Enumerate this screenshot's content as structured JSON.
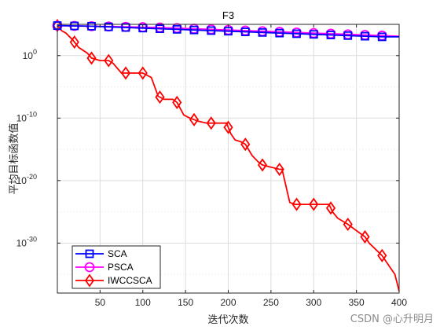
{
  "chart_data": {
    "type": "line",
    "title": "F3",
    "xlabel": "迭代次数",
    "ylabel": "平均目标函数值",
    "xlim": [
      0,
      400
    ],
    "ylim_log10": [
      -38,
      5
    ],
    "yscale": "log",
    "grid": true,
    "legend_position": "bottom-left",
    "x_ticks": [
      50,
      100,
      150,
      200,
      250,
      300,
      350,
      400
    ],
    "y_ticks": [
      {
        "exp": 0,
        "base": "10",
        "sup": "0"
      },
      {
        "exp": -10,
        "base": "10",
        "sup": "-10"
      },
      {
        "exp": -20,
        "base": "10",
        "sup": "-20"
      },
      {
        "exp": -30,
        "base": "10",
        "sup": "-30"
      }
    ],
    "series": [
      {
        "name": "SCA",
        "color": "#0000ff",
        "marker": "square",
        "marker_x": [
          0,
          20,
          40,
          60,
          80,
          100,
          120,
          140,
          160,
          180,
          200,
          220,
          240,
          260,
          280,
          300,
          320,
          340,
          360,
          380
        ],
        "x": [
          0,
          20,
          40,
          60,
          80,
          100,
          120,
          140,
          160,
          180,
          200,
          220,
          240,
          260,
          280,
          300,
          320,
          340,
          360,
          380,
          400
        ],
        "y_log10": [
          4.8,
          4.75,
          4.7,
          4.6,
          4.5,
          4.4,
          4.3,
          4.2,
          4.1,
          4.0,
          3.9,
          3.8,
          3.7,
          3.6,
          3.5,
          3.4,
          3.3,
          3.2,
          3.1,
          3.0,
          3.0
        ]
      },
      {
        "name": "PSCA",
        "color": "#ff00ff",
        "marker": "circle",
        "marker_x": [
          0,
          20,
          40,
          60,
          80,
          100,
          120,
          140,
          160,
          180,
          200,
          220,
          240,
          260,
          280,
          300,
          320,
          340,
          360,
          380
        ],
        "x": [
          0,
          20,
          40,
          60,
          80,
          100,
          120,
          140,
          160,
          180,
          200,
          220,
          240,
          260,
          280,
          300,
          320,
          340,
          360,
          380,
          400
        ],
        "y_log10": [
          4.8,
          4.75,
          4.7,
          4.65,
          4.6,
          4.55,
          4.5,
          4.4,
          4.3,
          4.2,
          4.1,
          4.0,
          3.9,
          3.8,
          3.7,
          3.6,
          3.5,
          3.4,
          3.3,
          3.2,
          3.1
        ]
      },
      {
        "name": "IWCCSCA",
        "color": "#ff0000",
        "marker": "diamond",
        "marker_x": [
          0,
          20,
          40,
          60,
          80,
          100,
          120,
          140,
          160,
          180,
          200,
          220,
          240,
          260,
          280,
          300,
          320,
          340,
          360,
          380
        ],
        "x": [
          0,
          5,
          10,
          18,
          25,
          35,
          40,
          50,
          55,
          60,
          65,
          75,
          80,
          95,
          100,
          110,
          118,
          125,
          135,
          140,
          148,
          155,
          165,
          175,
          185,
          198,
          203,
          208,
          215,
          220,
          228,
          235,
          240,
          248,
          260,
          263,
          272,
          278,
          292,
          318,
          322,
          328,
          340,
          350,
          360,
          365,
          380,
          390,
          395,
          400
        ],
        "y_log10": [
          4.8,
          4.0,
          3.6,
          2.5,
          1.3,
          0.4,
          -0.4,
          -0.8,
          -0.8,
          -0.8,
          -1.2,
          -2.8,
          -2.8,
          -2.8,
          -2.8,
          -3.5,
          -6.5,
          -7.0,
          -7.0,
          -7.5,
          -9.5,
          -10.0,
          -10.5,
          -10.8,
          -10.8,
          -10.8,
          -12.5,
          -13.5,
          -13.8,
          -14.2,
          -16.0,
          -17.0,
          -17.5,
          -17.8,
          -18.2,
          -18.2,
          -23.5,
          -23.8,
          -23.8,
          -23.8,
          -25.0,
          -26.0,
          -27.0,
          -28.0,
          -29.0,
          -30.0,
          -32.0,
          -34.0,
          -35.0,
          -37.7
        ]
      }
    ]
  },
  "watermark": "CSDN @心升明月"
}
